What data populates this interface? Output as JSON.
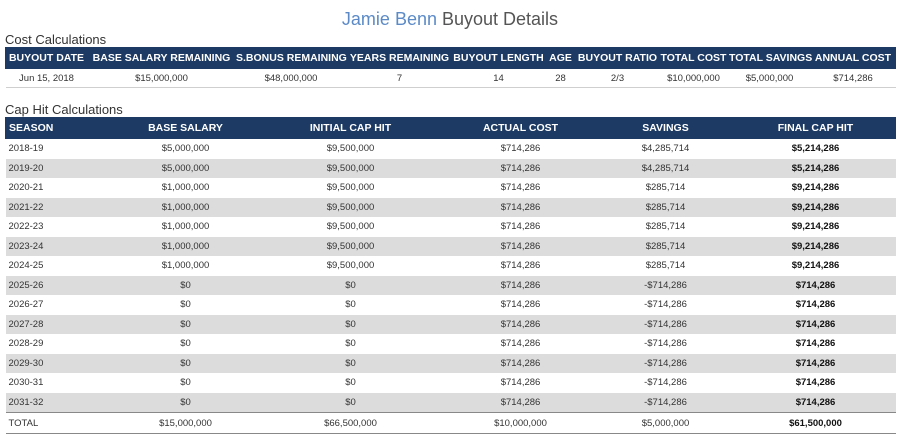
{
  "title": {
    "player": "Jamie Benn",
    "rest": "Buyout Details"
  },
  "cost_section": {
    "label": "Cost Calculations",
    "headers": [
      "BUYOUT DATE",
      "BASE SALARY REMAINING",
      "S.BONUS REMAINING",
      "YEARS REMAINING",
      "BUYOUT LENGTH",
      "AGE",
      "BUYOUT RATIO",
      "TOTAL COST",
      "TOTAL SAVINGS",
      "ANNUAL COST"
    ],
    "row": [
      "Jun 15, 2018",
      "$15,000,000",
      "$48,000,000",
      "7",
      "14",
      "28",
      "2/3",
      "$10,000,000",
      "$5,000,000",
      "$714,286"
    ]
  },
  "cap_section": {
    "label": "Cap Hit Calculations",
    "headers": [
      "SEASON",
      "BASE SALARY",
      "INITIAL CAP HIT",
      "ACTUAL COST",
      "SAVINGS",
      "FINAL CAP HIT"
    ],
    "rows": [
      [
        "2018-19",
        "$5,000,000",
        "$9,500,000",
        "$714,286",
        "$4,285,714",
        "$5,214,286"
      ],
      [
        "2019-20",
        "$5,000,000",
        "$9,500,000",
        "$714,286",
        "$4,285,714",
        "$5,214,286"
      ],
      [
        "2020-21",
        "$1,000,000",
        "$9,500,000",
        "$714,286",
        "$285,714",
        "$9,214,286"
      ],
      [
        "2021-22",
        "$1,000,000",
        "$9,500,000",
        "$714,286",
        "$285,714",
        "$9,214,286"
      ],
      [
        "2022-23",
        "$1,000,000",
        "$9,500,000",
        "$714,286",
        "$285,714",
        "$9,214,286"
      ],
      [
        "2023-24",
        "$1,000,000",
        "$9,500,000",
        "$714,286",
        "$285,714",
        "$9,214,286"
      ],
      [
        "2024-25",
        "$1,000,000",
        "$9,500,000",
        "$714,286",
        "$285,714",
        "$9,214,286"
      ],
      [
        "2025-26",
        "$0",
        "$0",
        "$714,286",
        "-$714,286",
        "$714,286"
      ],
      [
        "2026-27",
        "$0",
        "$0",
        "$714,286",
        "-$714,286",
        "$714,286"
      ],
      [
        "2027-28",
        "$0",
        "$0",
        "$714,286",
        "-$714,286",
        "$714,286"
      ],
      [
        "2028-29",
        "$0",
        "$0",
        "$714,286",
        "-$714,286",
        "$714,286"
      ],
      [
        "2029-30",
        "$0",
        "$0",
        "$714,286",
        "-$714,286",
        "$714,286"
      ],
      [
        "2030-31",
        "$0",
        "$0",
        "$714,286",
        "-$714,286",
        "$714,286"
      ],
      [
        "2031-32",
        "$0",
        "$0",
        "$714,286",
        "-$714,286",
        "$714,286"
      ]
    ],
    "total": [
      "TOTAL",
      "$15,000,000",
      "$66,500,000",
      "$10,000,000",
      "$5,000,000",
      "$61,500,000"
    ]
  }
}
